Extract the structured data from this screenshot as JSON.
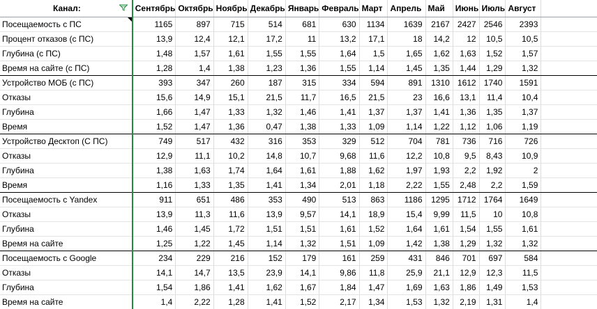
{
  "header": {
    "channel_label": "Канал:",
    "months": [
      "Сентябрь",
      "Октябрь",
      "Ноябрь",
      "Декабрь",
      "Январь",
      "Февраль",
      "Март",
      "Апрель",
      "Май",
      "Июнь",
      "Июль",
      "Август"
    ]
  },
  "groups": [
    {
      "rows": [
        {
          "label": "Посещаемость с ПС",
          "values": [
            "1165",
            "897",
            "715",
            "514",
            "681",
            "630",
            "1134",
            "1639",
            "2167",
            "2427",
            "2546",
            "2393"
          ]
        },
        {
          "label": "Процент отказов (с ПС)",
          "values": [
            "13,9",
            "12,4",
            "12,1",
            "17,2",
            "11",
            "13,2",
            "17,1",
            "18",
            "14,2",
            "12",
            "10,5",
            "10,5"
          ]
        },
        {
          "label": "Глубина (с ПС)",
          "values": [
            "1,48",
            "1,57",
            "1,61",
            "1,55",
            "1,55",
            "1,64",
            "1,5",
            "1,65",
            "1,62",
            "1,63",
            "1,52",
            "1,57"
          ]
        },
        {
          "label": "Время на сайте (с ПС)",
          "values": [
            "1,28",
            "1,4",
            "1,38",
            "1,23",
            "1,36",
            "1,55",
            "1,14",
            "1,45",
            "1,35",
            "1,44",
            "1,29",
            "1,32"
          ]
        }
      ]
    },
    {
      "rows": [
        {
          "label": "Устройство МОБ (с ПС)",
          "values": [
            "393",
            "347",
            "260",
            "187",
            "315",
            "334",
            "594",
            "891",
            "1310",
            "1612",
            "1740",
            "1591"
          ]
        },
        {
          "label": "Отказы",
          "values": [
            "15,6",
            "14,9",
            "15,1",
            "21,5",
            "11,7",
            "16,5",
            "21,5",
            "23",
            "16,6",
            "13,1",
            "11,4",
            "10,4"
          ]
        },
        {
          "label": "Глубина",
          "values": [
            "1,66",
            "1,47",
            "1,33",
            "1,32",
            "1,46",
            "1,41",
            "1,37",
            "1,37",
            "1,41",
            "1,36",
            "1,35",
            "1,37"
          ]
        },
        {
          "label": "Время",
          "values": [
            "1,52",
            "1,47",
            "1,36",
            "0,47",
            "1,38",
            "1,33",
            "1,09",
            "1,14",
            "1,22",
            "1,12",
            "1,06",
            "1,19"
          ]
        }
      ]
    },
    {
      "rows": [
        {
          "label": "Устройство Десктоп (С ПС)",
          "values": [
            "749",
            "517",
            "432",
            "316",
            "353",
            "329",
            "512",
            "704",
            "781",
            "736",
            "716",
            "726"
          ]
        },
        {
          "label": "Отказы",
          "values": [
            "12,9",
            "11,1",
            "10,2",
            "14,8",
            "10,7",
            "9,68",
            "11,6",
            "12,2",
            "10,8",
            "9,5",
            "8,43",
            "10,9"
          ]
        },
        {
          "label": "Глубина",
          "values": [
            "1,38",
            "1,63",
            "1,74",
            "1,64",
            "1,61",
            "1,88",
            "1,62",
            "1,97",
            "1,93",
            "2,2",
            "1,92",
            "2"
          ]
        },
        {
          "label": "Время",
          "values": [
            "1,16",
            "1,33",
            "1,35",
            "1,41",
            "1,34",
            "2,01",
            "1,18",
            "2,22",
            "1,55",
            "2,48",
            "2,2",
            "1,59"
          ]
        }
      ]
    },
    {
      "rows": [
        {
          "label": "Посещаемость с Yandex",
          "values": [
            "911",
            "651",
            "486",
            "353",
            "490",
            "513",
            "863",
            "1186",
            "1295",
            "1712",
            "1764",
            "1649"
          ]
        },
        {
          "label": "Отказы",
          "values": [
            "13,9",
            "11,3",
            "11,6",
            "13,9",
            "9,57",
            "14,1",
            "18,9",
            "15,4",
            "9,99",
            "11,5",
            "10",
            "10,8"
          ]
        },
        {
          "label": "Глубина",
          "values": [
            "1,46",
            "1,45",
            "1,72",
            "1,51",
            "1,51",
            "1,61",
            "1,52",
            "1,64",
            "1,61",
            "1,54",
            "1,55",
            "1,61"
          ]
        },
        {
          "label": "Время на сайте",
          "values": [
            "1,25",
            "1,22",
            "1,45",
            "1,14",
            "1,32",
            "1,51",
            "1,09",
            "1,42",
            "1,38",
            "1,29",
            "1,32",
            "1,32"
          ]
        }
      ]
    },
    {
      "rows": [
        {
          "label": "Посещаемость с Google",
          "values": [
            "234",
            "229",
            "216",
            "152",
            "179",
            "161",
            "259",
            "431",
            "846",
            "701",
            "697",
            "584"
          ]
        },
        {
          "label": "Отказы",
          "values": [
            "14,1",
            "14,7",
            "13,5",
            "23,9",
            "14,1",
            "9,86",
            "11,8",
            "25,9",
            "21,1",
            "12,9",
            "12,3",
            "11,5"
          ]
        },
        {
          "label": "Глубина",
          "values": [
            "1,54",
            "1,86",
            "1,41",
            "1,62",
            "1,67",
            "1,84",
            "1,47",
            "1,69",
            "1,63",
            "1,86",
            "1,49",
            "1,53"
          ]
        },
        {
          "label": "Время на сайте",
          "values": [
            "1,4",
            "2,22",
            "1,28",
            "1,41",
            "1,52",
            "2,17",
            "1,34",
            "1,53",
            "1,32",
            "2,19",
            "1,31",
            "1,4"
          ]
        }
      ]
    }
  ],
  "icons": {
    "filter": "filter-icon",
    "note_marker": "comment-marker-icon"
  },
  "colors": {
    "freeze_line": "#1e8e3e",
    "group_border": "#000000",
    "grid": "#dadce0"
  }
}
